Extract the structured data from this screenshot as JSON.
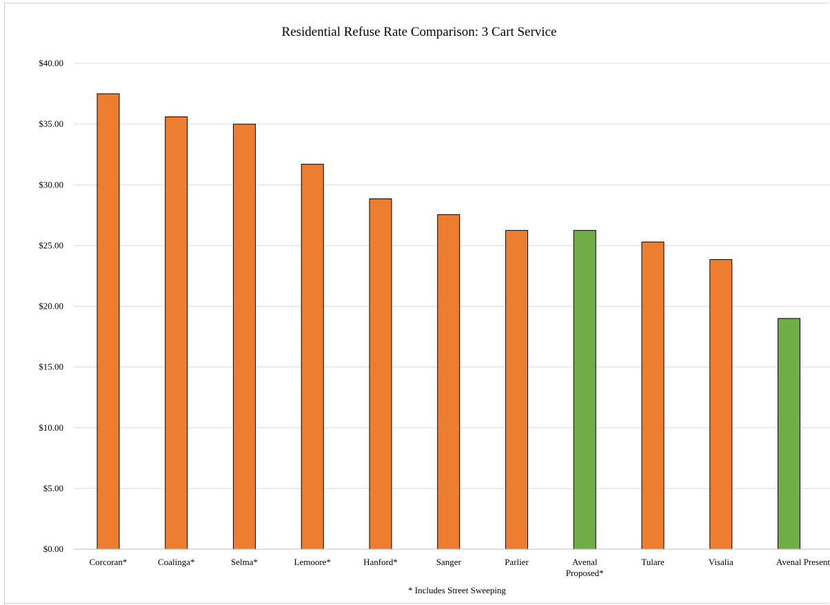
{
  "chart_data": {
    "type": "bar",
    "title": "Residential Refuse Rate Comparison:  3 Cart Service",
    "footnote": "* Includes Street Sweeping",
    "categories": [
      [
        "Corcoran*"
      ],
      [
        "Coalinga*"
      ],
      [
        "Selma*"
      ],
      [
        "Lemoore*"
      ],
      [
        "Hanford*"
      ],
      [
        "Sanger"
      ],
      [
        "Parlier"
      ],
      [
        "Avenal",
        "Proposed*"
      ],
      [
        "Tulare"
      ],
      [
        "Visalia"
      ],
      [
        "Avenal Present"
      ]
    ],
    "values": [
      37.5,
      35.6,
      35.0,
      31.7,
      28.85,
      27.55,
      26.25,
      26.25,
      25.3,
      23.85,
      19.0
    ],
    "bar_colors": [
      "#ed7d31",
      "#ed7d31",
      "#ed7d31",
      "#ed7d31",
      "#ed7d31",
      "#ed7d31",
      "#ed7d31",
      "#70ad47",
      "#ed7d31",
      "#ed7d31",
      "#70ad47"
    ],
    "ylim": [
      0,
      40
    ],
    "yticks": [
      0,
      5,
      10,
      15,
      20,
      25,
      30,
      35,
      40
    ],
    "ytick_labels": [
      "$0.00",
      "$5.00",
      "$10.00",
      "$15.00",
      "$20.00",
      "$25.00",
      "$30.00",
      "$35.00",
      "$40.00"
    ],
    "xlabel": "",
    "ylabel": "",
    "grid": true,
    "legend": "none"
  }
}
